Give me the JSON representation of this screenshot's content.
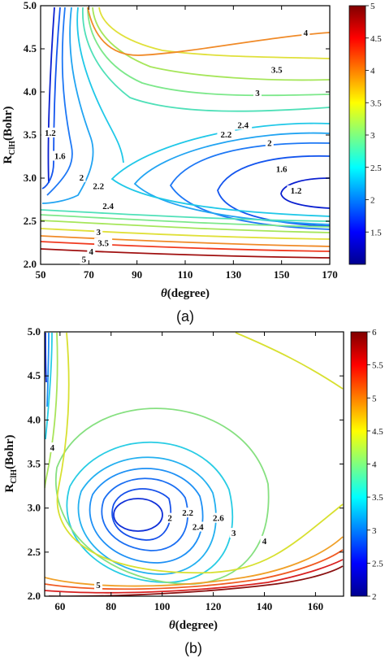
{
  "chart_data": [
    {
      "type": "contour",
      "panel_label": "(a)",
      "xlabel_symbol": "θ",
      "xlabel_text": "(degree)",
      "ylabel_main": "R",
      "ylabel_sub": "ClH",
      "ylabel_unit": "(Bohr)",
      "xlim": [
        50,
        170
      ],
      "ylim": [
        2.0,
        5.0
      ],
      "x_ticks": [
        "50",
        "70",
        "90",
        "110",
        "130",
        "150",
        "170"
      ],
      "y_ticks": [
        "2.0",
        "2.5",
        "3.0",
        "3.5",
        "4.0",
        "4.5",
        "5.0"
      ],
      "colorbar": {
        "min": 1.0,
        "max": 5.0,
        "ticks": [
          "1.5",
          "2",
          "2.5",
          "3",
          "3.5",
          "4",
          "4.5",
          "5"
        ]
      },
      "contour_levels": [
        1.2,
        1.6,
        2.0,
        2.2,
        2.4,
        2.6,
        2.8,
        3.0,
        3.5,
        4.0,
        4.5,
        5.0
      ],
      "contour_labels": [
        {
          "text": "4",
          "x": 160,
          "y": 4.68
        },
        {
          "text": "3.5",
          "x": 148,
          "y": 4.25
        },
        {
          "text": "3",
          "x": 140,
          "y": 3.98
        },
        {
          "text": "2.4",
          "x": 134,
          "y": 3.61
        },
        {
          "text": "2.2",
          "x": 127,
          "y": 3.5
        },
        {
          "text": "2",
          "x": 145,
          "y": 3.4
        },
        {
          "text": "1.6",
          "x": 150,
          "y": 3.1
        },
        {
          "text": "1.2",
          "x": 156,
          "y": 2.85
        },
        {
          "text": "1.2",
          "x": 54,
          "y": 3.52
        },
        {
          "text": "1.6",
          "x": 58,
          "y": 3.25
        },
        {
          "text": "2",
          "x": 67,
          "y": 3.0
        },
        {
          "text": "2.2",
          "x": 74,
          "y": 2.9
        },
        {
          "text": "2.4",
          "x": 78,
          "y": 2.67
        },
        {
          "text": "3",
          "x": 74,
          "y": 2.37
        },
        {
          "text": "3.5",
          "x": 76,
          "y": 2.24
        },
        {
          "text": "4",
          "x": 71,
          "y": 2.14
        },
        {
          "text": "5",
          "x": 68,
          "y": 2.05
        }
      ]
    },
    {
      "type": "contour",
      "panel_label": "(b)",
      "xlabel_symbol": "θ",
      "xlabel_text": "(degree)",
      "ylabel_main": "R",
      "ylabel_sub": "ClH",
      "ylabel_unit": "(Bohr)",
      "xlim": [
        54,
        171
      ],
      "ylim": [
        2.0,
        5.0
      ],
      "x_ticks": [
        "60",
        "80",
        "100",
        "120",
        "140",
        "160"
      ],
      "y_ticks": [
        "2.0",
        "2.5",
        "3.0",
        "3.5",
        "4.0",
        "4.5",
        "5.0"
      ],
      "colorbar": {
        "min": 2.0,
        "max": 6.0,
        "ticks": [
          "2",
          "2.5",
          "3",
          "3.5",
          "4",
          "4.5",
          "5",
          "5.5",
          "6"
        ]
      },
      "contour_levels": [
        2.0,
        2.2,
        2.4,
        2.6,
        2.8,
        3.0,
        3.5,
        4.0,
        4.5,
        5.0,
        5.5
      ],
      "contour_labels": [
        {
          "text": "2",
          "x": 103,
          "y": 2.88
        },
        {
          "text": "2.2",
          "x": 110,
          "y": 2.94
        },
        {
          "text": "2.4",
          "x": 114,
          "y": 2.78
        },
        {
          "text": "2.6",
          "x": 122,
          "y": 2.88
        },
        {
          "text": "3",
          "x": 128,
          "y": 2.71
        },
        {
          "text": "4",
          "x": 140,
          "y": 2.62
        },
        {
          "text": "4",
          "x": 57,
          "y": 3.68
        },
        {
          "text": "5",
          "x": 75,
          "y": 2.12
        }
      ]
    }
  ]
}
